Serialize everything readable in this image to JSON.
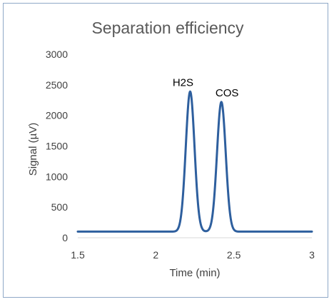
{
  "chart_data": {
    "type": "line",
    "title": "Separation efficiency",
    "xlabel": "Time (min)",
    "ylabel": "Signal (µV)",
    "xlim": [
      1.5,
      3
    ],
    "ylim": [
      0,
      3000
    ],
    "x_ticks": [
      "1.5",
      "2",
      "2.5",
      "3"
    ],
    "y_ticks": [
      "0",
      "500",
      "1000",
      "1500",
      "2000",
      "2500",
      "3000"
    ],
    "grid": false,
    "legend": "none",
    "series": [
      {
        "color": "#2e5f9e",
        "baseline": 100,
        "peaks": [
          {
            "label": "H2S",
            "time": 2.22,
            "height": 2390
          },
          {
            "label": "COS",
            "time": 2.42,
            "height": 2220
          }
        ]
      }
    ]
  }
}
